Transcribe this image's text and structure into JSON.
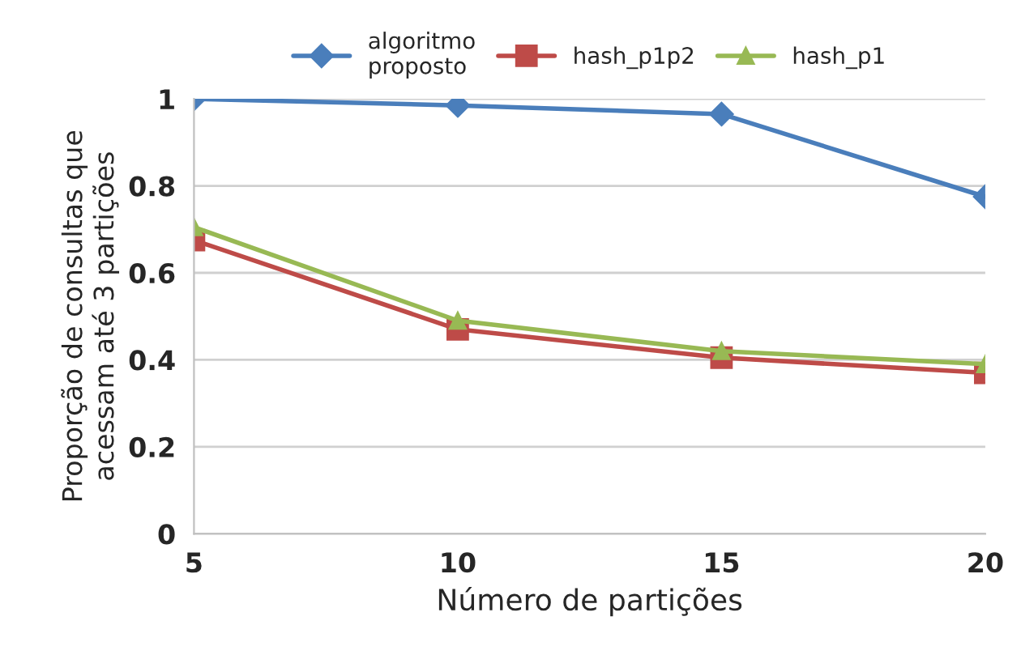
{
  "chart_data": {
    "type": "line",
    "xlabel": "Número de partições",
    "ylabel": "Proporção de consultas que\nacessam até 3 partições",
    "categories": [
      "5",
      "10",
      "15",
      "20"
    ],
    "series": [
      {
        "name": "algoritmo\nproposto",
        "color": "#4a7ebb",
        "marker": "diamond",
        "values": [
          1.0,
          0.985,
          0.965,
          0.775
        ]
      },
      {
        "name": "hash_p1p2",
        "color": "#be4b48",
        "marker": "square",
        "values": [
          0.675,
          0.47,
          0.405,
          0.37
        ]
      },
      {
        "name": "hash_p1",
        "color": "#98b954",
        "marker": "triangle",
        "values": [
          0.705,
          0.49,
          0.42,
          0.39
        ]
      }
    ],
    "ylim": [
      0,
      1
    ],
    "yticks": [
      0,
      0.2,
      0.4,
      0.6,
      0.8,
      1
    ],
    "grid": "y",
    "legend": "top",
    "line_style": "solid"
  }
}
